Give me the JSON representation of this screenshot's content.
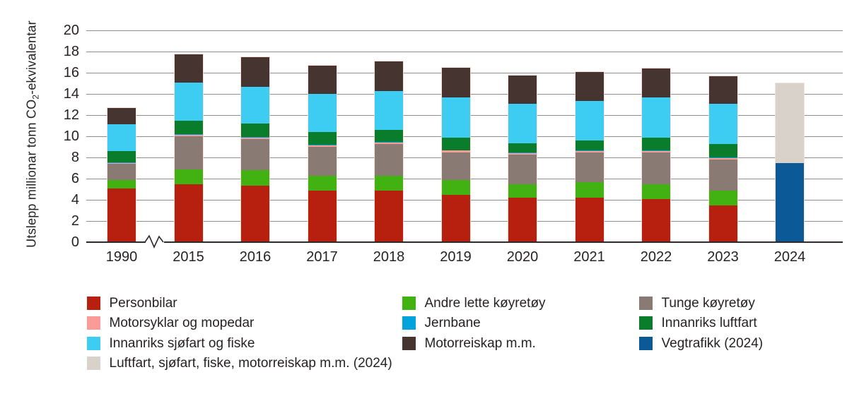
{
  "yaxis": {
    "title_prefix": "Utslepp millionar tonn CO",
    "title_sub": "2",
    "title_suffix": "-ekvivalentar"
  },
  "chart_data": {
    "type": "bar",
    "stacked": true,
    "title": "",
    "xlabel": "",
    "ylabel": "Utslepp millionar tonn CO2-ekvivalentar",
    "ylim": [
      0,
      20
    ],
    "ytick_step": 2,
    "yticks": [
      0,
      2,
      4,
      6,
      8,
      10,
      12,
      14,
      16,
      18,
      20
    ],
    "grid": true,
    "legend_position": "bottom",
    "axis_break_after_first_category": true,
    "categories": [
      "1990",
      "2015",
      "2016",
      "2017",
      "2018",
      "2019",
      "2020",
      "2021",
      "2022",
      "2023",
      "2024"
    ],
    "series": [
      {
        "name": "Personbilar",
        "key": "personbilar",
        "color": "#b71f0e",
        "values": [
          5.1,
          5.45,
          5.35,
          4.85,
          4.85,
          4.45,
          4.2,
          4.2,
          4.05,
          3.5,
          0
        ]
      },
      {
        "name": "Andre lette køyretøy",
        "key": "andre_lette",
        "color": "#41b211",
        "values": [
          0.8,
          1.45,
          1.45,
          1.4,
          1.4,
          1.45,
          1.25,
          1.45,
          1.4,
          1.4,
          0
        ]
      },
      {
        "name": "Tunge køyretøy",
        "key": "tunge",
        "color": "#8a7a74",
        "values": [
          1.5,
          3.1,
          2.95,
          2.75,
          3.0,
          2.6,
          2.8,
          2.8,
          3.0,
          2.9,
          0
        ]
      },
      {
        "name": "Motorsyklar og mopedar",
        "key": "motorsyklar",
        "color": "#fa9b97",
        "values": [
          0.1,
          0.15,
          0.15,
          0.15,
          0.15,
          0.15,
          0.15,
          0.15,
          0.15,
          0.15,
          0
        ]
      },
      {
        "name": "Jernbane",
        "key": "jernbane",
        "color": "#00a3dc",
        "values": [
          0.05,
          0.05,
          0.05,
          0.05,
          0.05,
          0.05,
          0.05,
          0.05,
          0.05,
          0.05,
          0
        ]
      },
      {
        "name": "Innanriks luftfart",
        "key": "innanriks_luftfart",
        "color": "#0a7d2c",
        "values": [
          1.05,
          1.3,
          1.25,
          1.2,
          1.15,
          1.2,
          0.9,
          0.95,
          1.2,
          1.25,
          0
        ]
      },
      {
        "name": "Innanriks sjøfart og fiske",
        "key": "innanriks_sjofart",
        "color": "#3ecdf2",
        "values": [
          2.55,
          3.6,
          3.5,
          3.6,
          3.7,
          3.8,
          3.7,
          3.75,
          3.85,
          3.85,
          0
        ]
      },
      {
        "name": "Motorreiskap m.m.",
        "key": "motorreiskap",
        "color": "#453430",
        "values": [
          1.55,
          2.65,
          2.75,
          2.65,
          2.8,
          2.8,
          2.7,
          2.75,
          2.7,
          2.6,
          0
        ]
      },
      {
        "name": "Vegtrafikk (2024)",
        "key": "vegtrafikk_2024",
        "color": "#0b5a97",
        "values": [
          0,
          0,
          0,
          0,
          0,
          0,
          0,
          0,
          0,
          0,
          7.5
        ]
      },
      {
        "name": "Luftfart, sjøfart, fiske, motorreiskap m.m. (2024)",
        "key": "luftfart_2024",
        "color": "#d8d2cb",
        "values": [
          0,
          0,
          0,
          0,
          0,
          0,
          0,
          0,
          0,
          0,
          7.5
        ]
      }
    ]
  },
  "legend": {
    "columns": [
      [
        {
          "key": "personbilar",
          "label": "Personbilar"
        },
        {
          "key": "motorsyklar",
          "label": "Motorsyklar og mopedar"
        },
        {
          "key": "innanriks_sjofart",
          "label": "Innanriks sjøfart og fiske"
        },
        {
          "key": "luftfart_2024",
          "label": "Luftfart, sjøfart, fiske, motorreiskap m.m. (2024)"
        }
      ],
      [
        {
          "key": "andre_lette",
          "label": "Andre lette køyretøy"
        },
        {
          "key": "jernbane",
          "label": "Jernbane"
        },
        {
          "key": "motorreiskap",
          "label": "Motorreiskap m.m."
        }
      ],
      [
        {
          "key": "tunge",
          "label": "Tunge køyretøy"
        },
        {
          "key": "innanriks_luftfart",
          "label": "Innanriks luftfart"
        },
        {
          "key": "vegtrafikk_2024",
          "label": "Vegtrafikk (2024)"
        }
      ]
    ]
  }
}
